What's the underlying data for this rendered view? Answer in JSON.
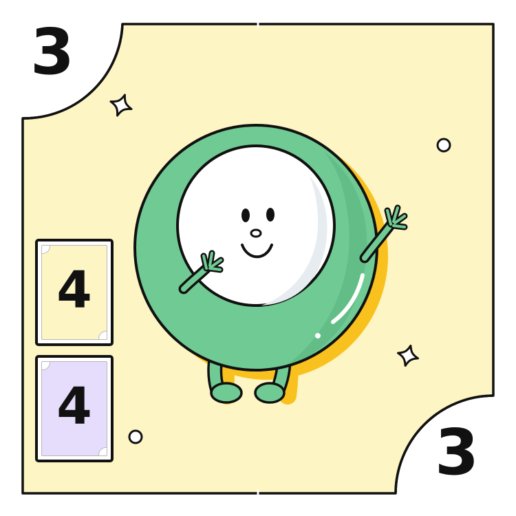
{
  "card": {
    "rank_top_left": "3",
    "rank_bottom_right": "3",
    "colors": {
      "background": "#fdf5c4",
      "character_green": "#6fcb93",
      "shadow_yellow": "#f9c11e",
      "face_white": "#ffffff",
      "outline": "#111111"
    }
  },
  "stack": [
    {
      "value": "4",
      "color": "#fdf5c4"
    },
    {
      "value": "4",
      "color": "#e6dcfb"
    }
  ],
  "decorations": [
    "sparkle-icon",
    "sparkle-icon",
    "dot-icon",
    "dot-icon"
  ]
}
